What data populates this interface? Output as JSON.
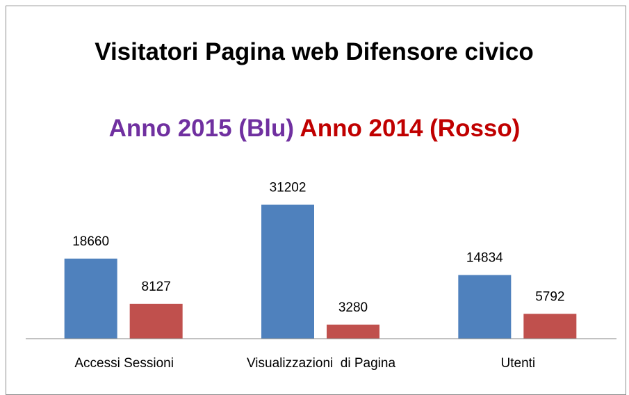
{
  "chart_data": {
    "type": "bar",
    "title": "Visitatori Pagina web Difensore civico",
    "subtitle": [
      {
        "text": "Anno 2015 (Blu)",
        "color": "#7030a0"
      },
      {
        "text": "Anno 2014 (Rosso)",
        "color": "#c00000"
      }
    ],
    "categories": [
      "Accessi Sessioni",
      "Visualizzazioni  di Pagina",
      "Utenti"
    ],
    "series": [
      {
        "color": "#4f81bd",
        "values": [
          18660,
          31202,
          14834
        ]
      },
      {
        "color": "#c0504d",
        "values": [
          8127,
          3280,
          5792
        ]
      }
    ],
    "ylim": [
      0,
      35000
    ]
  }
}
